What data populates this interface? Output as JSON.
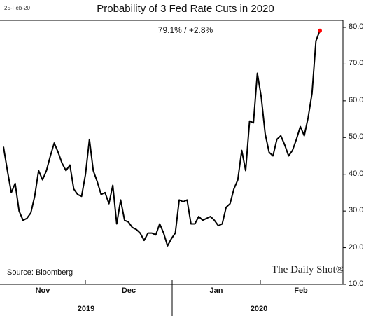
{
  "date_stamp": "25-Feb-20",
  "source": "Source: Bloomberg",
  "brand": "The Daily Shot®",
  "chart_data": {
    "type": "line",
    "title": "Probability of 3 Fed Rate Cuts in 2020",
    "subtitle": "79.1%  /  +2.8%",
    "xlabel": "",
    "ylabel": "",
    "ylim": [
      10,
      80
    ],
    "yticks": [
      "10.0",
      "20.0",
      "30.0",
      "40.0",
      "50.0",
      "60.0",
      "70.0",
      "80.0"
    ],
    "month_labels": [
      "Nov",
      "Dec",
      "Jan",
      "Feb"
    ],
    "year_labels": [
      "2019",
      "2020"
    ],
    "grid": false,
    "line_color": "#000000",
    "last_point_color": "#ff0000",
    "series": [
      {
        "values": [
          47.5,
          41,
          35,
          37.5,
          30,
          27.5,
          28,
          29.5,
          34,
          41,
          38.5,
          41,
          45,
          48.5,
          46,
          43,
          41,
          42.5,
          36,
          34.5,
          34,
          40,
          49.5,
          41,
          38,
          34.5,
          35,
          32,
          37,
          26.5,
          33,
          27.5,
          27,
          25.5,
          25,
          24,
          22,
          24,
          24,
          23.5,
          26.5,
          24,
          20.5,
          22.5,
          24,
          33,
          32.5,
          33,
          26.5,
          26.5,
          28.5,
          27.5,
          28,
          28.5,
          27.5,
          26,
          26.5,
          31,
          32,
          36,
          38.5,
          46.5,
          41,
          54.5,
          54,
          67.5,
          61,
          51,
          46,
          45,
          49.5,
          50.5,
          48,
          45,
          46.5,
          49.5,
          53,
          50.5,
          55.5,
          62,
          76.3,
          79.1
        ]
      }
    ]
  }
}
